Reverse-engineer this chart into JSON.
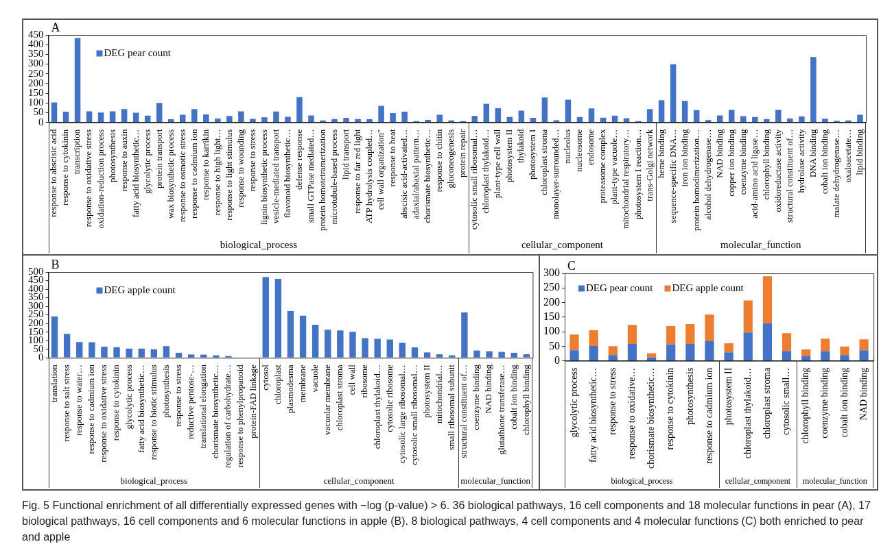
{
  "chart_data": [
    {
      "type": "bar",
      "title": "A",
      "categories": [
        "response to abscisic acid",
        "response to cytokinin",
        "transcription",
        "response to oxidative stress",
        "oxidation-reduction process",
        "photosynthesis",
        "response to auxin",
        "fatty acid biosynthetic…",
        "glycolytic process",
        "protein transport",
        "wax biosynthetic process",
        "response to osmotic stress",
        "response to cadmium ion",
        "response to karrikin",
        "response to high light…",
        "response to light stimulus",
        "response to wounding",
        "response to stress",
        "lignin biosynthetic process",
        "vesicle-mediated transport",
        "flavonoid biosynthetic…",
        "defense response",
        "small GTPase mediated…",
        "protein homotetramerization",
        "microtubule-based process",
        "lipid transport",
        "response to far red light",
        "ATP hydrolysis coupled…",
        "cell wall organization\"",
        "response to heat",
        "abscisic acid-activated…",
        "adaxial/abaxial pattern…",
        "chorismate biosynthetic…",
        "response to chitin",
        "gluconeogenesis",
        "protein repair",
        "cytosolic small ribosomal…",
        "chloroplast thylakoid…",
        "plant-type cell wall",
        "photosystem II",
        "thylakoid",
        "photosystem I",
        "chloroplast stroma",
        "monolayer-surrounded…",
        "nucleolus",
        "nucleosome",
        "endosome",
        "proteasome complex",
        "plant-type vacuole…",
        "mitochondrial respiratory…",
        "photosystem I reaction…",
        "trans-Golgi network",
        "heme binding",
        "sequence-specific DNA…",
        "iron ion binding",
        "protein homodimerization…",
        "alcohol dehydrogenase…",
        "NAD binding",
        "copper ion binding",
        "coenzyme binding",
        "acid-amino acid ligase…",
        "chlorophyll binding",
        "oxidoreductase activity",
        "structural constituent of…",
        "hydrolase activity",
        "DNA binding",
        "cobalt ion binding",
        "malate dehydrogenase…",
        "oxaloacetate…",
        "lipid binding"
      ],
      "series": [
        {
          "name": "DEG pear count",
          "color": "#4472c4",
          "values": [
            103,
            55,
            434,
            57,
            51,
            57,
            68,
            50,
            35,
            100,
            16,
            39,
            68,
            41,
            20,
            33,
            57,
            18,
            26,
            56,
            29,
            130,
            36,
            10,
            17,
            23,
            17,
            16,
            85,
            48,
            55,
            7,
            13,
            39,
            10,
            7,
            33,
            96,
            73,
            28,
            60,
            23,
            128,
            11,
            117,
            28,
            72,
            24,
            35,
            22,
            7,
            68,
            114,
            299,
            111,
            63,
            12,
            36,
            65,
            32,
            28,
            17,
            65,
            20,
            30,
            336,
            19,
            8,
            10,
            39
          ]
        }
      ],
      "ylim": [
        0,
        450
      ],
      "yticks": [
        0,
        50,
        100,
        150,
        200,
        250,
        300,
        350,
        400,
        450
      ],
      "grid": false,
      "legend": "top left",
      "annotations": [
        "biological_process",
        "cellular_component",
        "molecular_function"
      ]
    },
    {
      "type": "bar",
      "title": "B",
      "categories": [
        "translation",
        "response to salt stress",
        "response to water…",
        "response to cadmium ion",
        "response to oxidative stress",
        "response to cytokinin",
        "glycolytic process",
        "fatty acid biosynthetic…",
        "response to biotic stimulus",
        "photosynthesis",
        "response to stress",
        "reductive pentose-…",
        "translational elongation",
        "chorismate biosynthetic…",
        "regulation of carbohydrate…",
        "response to phenylpropanoid",
        "protein-FAD linkage",
        "cytosol",
        "chloroplast",
        "plasmodesma",
        "membrane",
        "vacuole",
        "vacuolar membrane",
        "chloroplast stroma",
        "cell wall",
        "ribosome",
        "chloroplast thylakoid…",
        "cytosolic ribosome",
        "cytosolic large ribosomal…",
        "cytosolic small ribosomal…",
        "photosystem II",
        "mitochondrial…",
        "small ribosomal subunit",
        "structural constituent of…",
        "coenzyme binding",
        "NAD binding",
        "glutathione transferase…",
        "cobalt ion binding",
        "chlorophyll binding"
      ],
      "series": [
        {
          "name": "DEG apple count",
          "color": "#4472c4",
          "values": [
            241,
            139,
            91,
            90,
            64,
            61,
            53,
            53,
            49,
            67,
            29,
            19,
            18,
            14,
            10,
            0,
            0,
            471,
            460,
            272,
            245,
            192,
            163,
            159,
            151,
            114,
            110,
            106,
            87,
            60,
            31,
            20,
            14,
            264,
            42,
            38,
            34,
            29,
            20
          ]
        }
      ],
      "ylim": [
        0,
        500
      ],
      "yticks": [
        0,
        50,
        100,
        150,
        200,
        250,
        300,
        350,
        400,
        450,
        500
      ],
      "grid": false,
      "legend": "top left",
      "annotations": [
        "biological_process",
        "cellular_component",
        "molecular_function"
      ]
    },
    {
      "type": "bar",
      "title": "C",
      "stacked": true,
      "categories": [
        "glycolytic process",
        "fatty acid biosynthetic…",
        "response to stress",
        "response to oxidative…",
        "chorismate biosynthetic…",
        "response to cytokinin",
        "photosynthesis",
        "response to cadmium ion",
        "photosystem II",
        "chloroplast thylakoid…",
        "chloroplast stroma",
        "cytosolic small…",
        "chlorophyll binding",
        "coenzyme binding",
        "cobalt ion binding",
        "NAD binding"
      ],
      "series": [
        {
          "name": "DEG pear count",
          "color": "#4472c4",
          "values": [
            36,
            51,
            20,
            58,
            12,
            56,
            58,
            69,
            29,
            97,
            129,
            34,
            17,
            33,
            20,
            36
          ]
        },
        {
          "name": "DEG apple count",
          "color": "#ed7d31",
          "values": [
            54,
            54,
            30,
            65,
            14,
            63,
            68,
            90,
            31,
            110,
            161,
            61,
            22,
            43,
            29,
            38
          ]
        }
      ],
      "ylim": [
        0,
        300
      ],
      "yticks": [
        0,
        50,
        100,
        150,
        200,
        250,
        300
      ],
      "grid": false,
      "legend": "top left",
      "annotations": [
        "biological_process",
        "cellular_component",
        "molecular_function",
        "Fig. 5  Functional enrichment of all differentially expressed genes with −log (p-value) > 6. 36 biological pathways, 16 cell components and 18 molecular functions in pear (A), 17 biological pathways, 16 cell components and 6 molecular functions in apple (B). 8 biological pathways, 4 cell components and 4 molecular functions (C) both enriched to pear and apple"
      ]
    }
  ]
}
